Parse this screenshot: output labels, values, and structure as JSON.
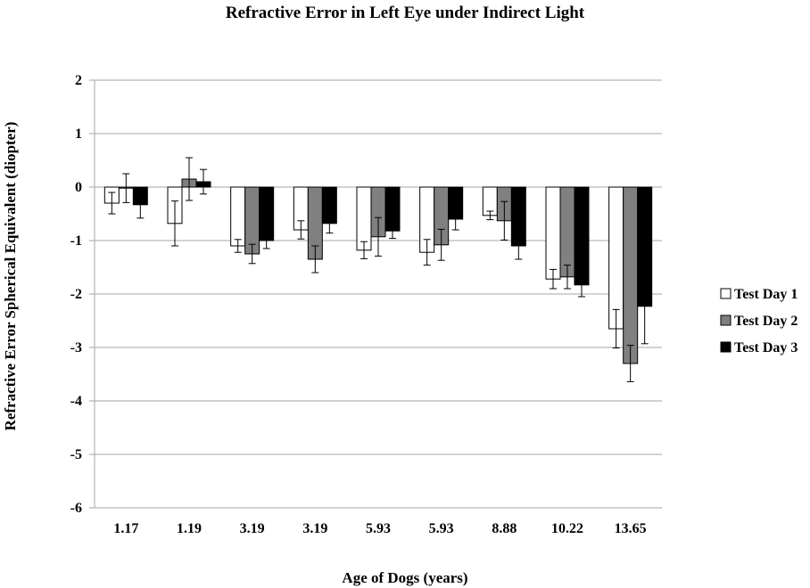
{
  "chart_data": {
    "type": "bar",
    "title": "Refractive Error in Left Eye under Indirect Light",
    "xlabel": "Age of Dogs (years)",
    "ylabel": "Refractive Error Spherical Equivalent (diopter)",
    "categories": [
      "1.17",
      "1.19",
      "3.19",
      "3.19",
      "5.93",
      "5.93",
      "8.88",
      "10.22",
      "13.65"
    ],
    "ylim": [
      -6,
      2
    ],
    "yticks": [
      2,
      1,
      0,
      -1,
      -2,
      -3,
      -4,
      -5,
      -6
    ],
    "grid": true,
    "legend_position": "right",
    "series": [
      {
        "name": "Test Day 1",
        "color": "#ffffff",
        "values": [
          -0.3,
          -0.68,
          -1.1,
          -0.8,
          -1.18,
          -1.22,
          -0.53,
          -1.72,
          -2.65
        ],
        "errors": [
          0.2,
          0.42,
          0.12,
          0.17,
          0.16,
          0.24,
          0.08,
          0.18,
          0.36
        ]
      },
      {
        "name": "Test Day 2",
        "color": "#808080",
        "values": [
          -0.02,
          0.15,
          -1.25,
          -1.35,
          -0.93,
          -1.08,
          -0.63,
          -1.68,
          -3.3
        ],
        "errors": [
          0.27,
          0.4,
          0.18,
          0.25,
          0.36,
          0.29,
          0.36,
          0.22,
          0.34
        ]
      },
      {
        "name": "Test Day 3",
        "color": "#000000",
        "values": [
          -0.33,
          0.1,
          -1.0,
          -0.68,
          -0.82,
          -0.6,
          -1.1,
          -1.83,
          -2.23
        ],
        "errors": [
          0.25,
          0.23,
          0.15,
          0.18,
          0.14,
          0.2,
          0.25,
          0.22,
          0.7
        ]
      }
    ]
  }
}
